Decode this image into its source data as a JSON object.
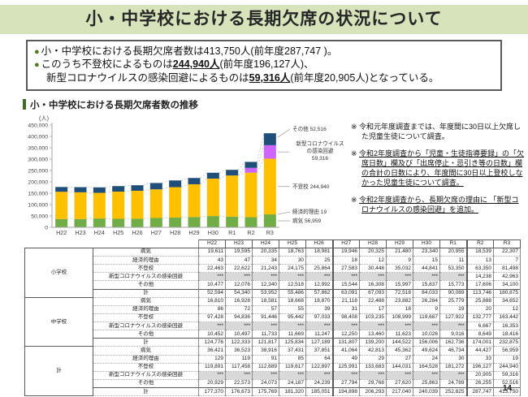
{
  "page": {
    "title": "小・中学校における長期欠席の状況について",
    "page_number": "14"
  },
  "summary_box": {
    "bullets": [
      {
        "marker": "●",
        "segments": [
          {
            "t": "小・中学校における長期欠席者数は413,750人(前年度287,747 )。"
          }
        ]
      },
      {
        "marker": "●",
        "segments": [
          {
            "t": "このうち不登校によるものは"
          },
          {
            "t": "244,940人",
            "b": true,
            "u": true
          },
          {
            "t": "(前年度196,127人)、"
          }
        ]
      },
      {
        "marker": "",
        "segments": [
          {
            "t": "新型コロナウイルスの感染回避によるものは"
          },
          {
            "t": "59,316人",
            "b": true,
            "u": true
          },
          {
            "t": "(前年度20,905人)となっている。"
          }
        ]
      }
    ]
  },
  "chart": {
    "section_title": "小・中学校における長期欠席者数の推移",
    "unit_label": "(人)"
  },
  "chart_data": {
    "type": "bar",
    "stacked": true,
    "title": "小・中学校における長期欠席者数の推移",
    "ylabel": "(人)",
    "ylim": [
      0,
      450000
    ],
    "ytick_step": 50000,
    "categories": [
      "H22",
      "H23",
      "H24",
      "H25",
      "H26",
      "H27",
      "H28",
      "H29",
      "H30",
      "R1",
      "R2",
      "R3"
    ],
    "series": [
      {
        "name": "病気",
        "color": "#70ad47",
        "values": [
          36421,
          36523,
          38916,
          37431,
          37851,
          41064,
          42813,
          45362,
          49624,
          46734,
          44427,
          56959
        ]
      },
      {
        "name": "経済的理由",
        "color": "#ff0000",
        "values": [
          129,
          119,
          91,
          85,
          64,
          49,
          29,
          27,
          24,
          30,
          33,
          19
        ]
      },
      {
        "name": "不登校",
        "color": "#ffc000",
        "values": [
          119891,
          117458,
          112689,
          119617,
          122897,
          125991,
          133683,
          144031,
          164528,
          181272,
          196127,
          244940
        ]
      },
      {
        "name": "新型コロナウイルスの感染回避",
        "color": "#cc66ff",
        "values": [
          0,
          0,
          0,
          0,
          0,
          0,
          0,
          0,
          0,
          0,
          20905,
          59316
        ]
      },
      {
        "name": "その他",
        "color": "#1f4e79",
        "values": [
          20929,
          22573,
          24073,
          24187,
          24239,
          27794,
          29768,
          27620,
          25863,
          24789,
          26255,
          52516
        ]
      }
    ],
    "annotations": [
      {
        "series_index": 4,
        "label": "その他",
        "value": "52,516"
      },
      {
        "series_index": 3,
        "label": "新型コロナウイルス\nの感染回避",
        "value": "59,316"
      },
      {
        "series_index": 2,
        "label": "不登校",
        "value": "244,940"
      },
      {
        "series_index": 1,
        "label": "経済的理由",
        "value": "19"
      },
      {
        "series_index": 0,
        "label": "病気",
        "value": "56,959"
      }
    ]
  },
  "notes": [
    {
      "marker": "※",
      "text": "令和元年度調査までは、年度間に30日以上欠席した児童生徒について調査。",
      "underline": false
    },
    {
      "marker": "※",
      "text": "令和2年度調査から「児童・生徒指導要録」の「欠席日数」欄及び「出席停止・忌引き等の日数」欄の合計の日数により、年度間に30日以上登校しなかった児童生徒について調査。",
      "underline": true
    },
    {
      "marker": "※",
      "text": "令和2年度調査から、長期欠席の理由に 「新型コロナウイルスの感染回避」を追加。",
      "underline": true
    }
  ],
  "table": {
    "years": [
      "H22",
      "H23",
      "H24",
      "H25",
      "H26",
      "H27",
      "H28",
      "H29",
      "H30",
      "R1",
      "R2",
      "R3"
    ],
    "groups": [
      {
        "name": "小学校",
        "rows": [
          {
            "label": "病気",
            "values": [
              "19,611",
              "19,595",
              "20,335",
              "18,763",
              "18,981",
              "19,946",
              "20,325",
              "21,480",
              "23,340",
              "20,955",
              "18,539",
              "22,307"
            ]
          },
          {
            "label": "経済的理由",
            "values": [
              "43",
              "47",
              "34",
              "30",
              "25",
              "18",
              "12",
              "9",
              "15",
              "11",
              "13",
              "7"
            ]
          },
          {
            "label": "不登校",
            "values": [
              "22,463",
              "22,622",
              "21,243",
              "24,175",
              "25,864",
              "27,583",
              "30,448",
              "35,032",
              "44,841",
              "53,350",
              "63,350",
              "81,498"
            ]
          },
          {
            "label": "新型コロナウイルスの感染回避",
            "values": [
              "***",
              "***",
              "***",
              "***",
              "***",
              "***",
              "***",
              "***",
              "***",
              "***",
              "14,238",
              "42,963"
            ]
          },
          {
            "label": "その他",
            "values": [
              "10,477",
              "12,076",
              "12,340",
              "12,518",
              "12,992",
              "15,544",
              "16,308",
              "15,997",
              "15,837",
              "15,773",
              "17,606",
              "34,100"
            ]
          },
          {
            "label": "計",
            "values": [
              "52,594",
              "54,340",
              "53,952",
              "55,486",
              "57,862",
              "63,091",
              "67,093",
              "72,518",
              "84,033",
              "90,089",
              "113,746",
              "180,875"
            ]
          }
        ]
      },
      {
        "name": "中学校",
        "rows": [
          {
            "label": "病気",
            "values": [
              "16,810",
              "16,928",
              "18,581",
              "18,668",
              "18,870",
              "21,118",
              "22,488",
              "23,882",
              "26,284",
              "25,779",
              "25,888",
              "34,652"
            ]
          },
          {
            "label": "経済的理由",
            "values": [
              "86",
              "72",
              "57",
              "55",
              "39",
              "31",
              "17",
              "18",
              "9",
              "19",
              "20",
              "12"
            ]
          },
          {
            "label": "不登校",
            "values": [
              "97,428",
              "94,836",
              "91,446",
              "95,442",
              "97,033",
              "98,408",
              "103,235",
              "108,999",
              "119,687",
              "127,922",
              "132,777",
              "163,442"
            ]
          },
          {
            "label": "新型コロナウイルスの感染回避",
            "values": [
              "***",
              "***",
              "***",
              "***",
              "***",
              "***",
              "***",
              "***",
              "***",
              "***",
              "6,667",
              "16,353"
            ]
          },
          {
            "label": "その他",
            "values": [
              "10,452",
              "10,497",
              "11,733",
              "11,669",
              "11,247",
              "12,250",
              "13,460",
              "11,623",
              "10,026",
              "9,016",
              "8,649",
              "18,416"
            ]
          },
          {
            "label": "計",
            "values": [
              "124,776",
              "122,333",
              "121,817",
              "125,834",
              "127,189",
              "131,807",
              "139,200",
              "144,522",
              "156,006",
              "162,736",
              "174,001",
              "232,875"
            ]
          }
        ]
      },
      {
        "name": "計",
        "rows": [
          {
            "label": "病気",
            "values": [
              "36,421",
              "36,523",
              "38,916",
              "37,431",
              "37,851",
              "41,064",
              "42,813",
              "45,362",
              "49,624",
              "46,734",
              "44,427",
              "56,959"
            ]
          },
          {
            "label": "経済的理由",
            "values": [
              "129",
              "119",
              "91",
              "85",
              "64",
              "49",
              "29",
              "27",
              "24",
              "30",
              "33",
              "19"
            ]
          },
          {
            "label": "不登校",
            "values": [
              "119,891",
              "117,458",
              "112,689",
              "119,617",
              "122,897",
              "125,991",
              "133,683",
              "144,031",
              "164,528",
              "181,272",
              "196,127",
              "244,940"
            ]
          },
          {
            "label": "新型コロナウイルスの感染回避",
            "values": [
              "***",
              "***",
              "***",
              "***",
              "***",
              "***",
              "***",
              "***",
              "***",
              "***",
              "20,905",
              "59,316"
            ]
          },
          {
            "label": "その他",
            "values": [
              "20,929",
              "22,573",
              "24,073",
              "24,187",
              "24,239",
              "27,794",
              "29,768",
              "27,620",
              "25,863",
              "24,789",
              "26,255",
              "52,516"
            ]
          },
          {
            "label": "計",
            "values": [
              "177,370",
              "176,673",
              "175,769",
              "181,320",
              "185,051",
              "194,898",
              "206,293",
              "217,040",
              "240,039",
              "252,825",
              "287,747",
              "413,750"
            ]
          }
        ]
      }
    ]
  }
}
